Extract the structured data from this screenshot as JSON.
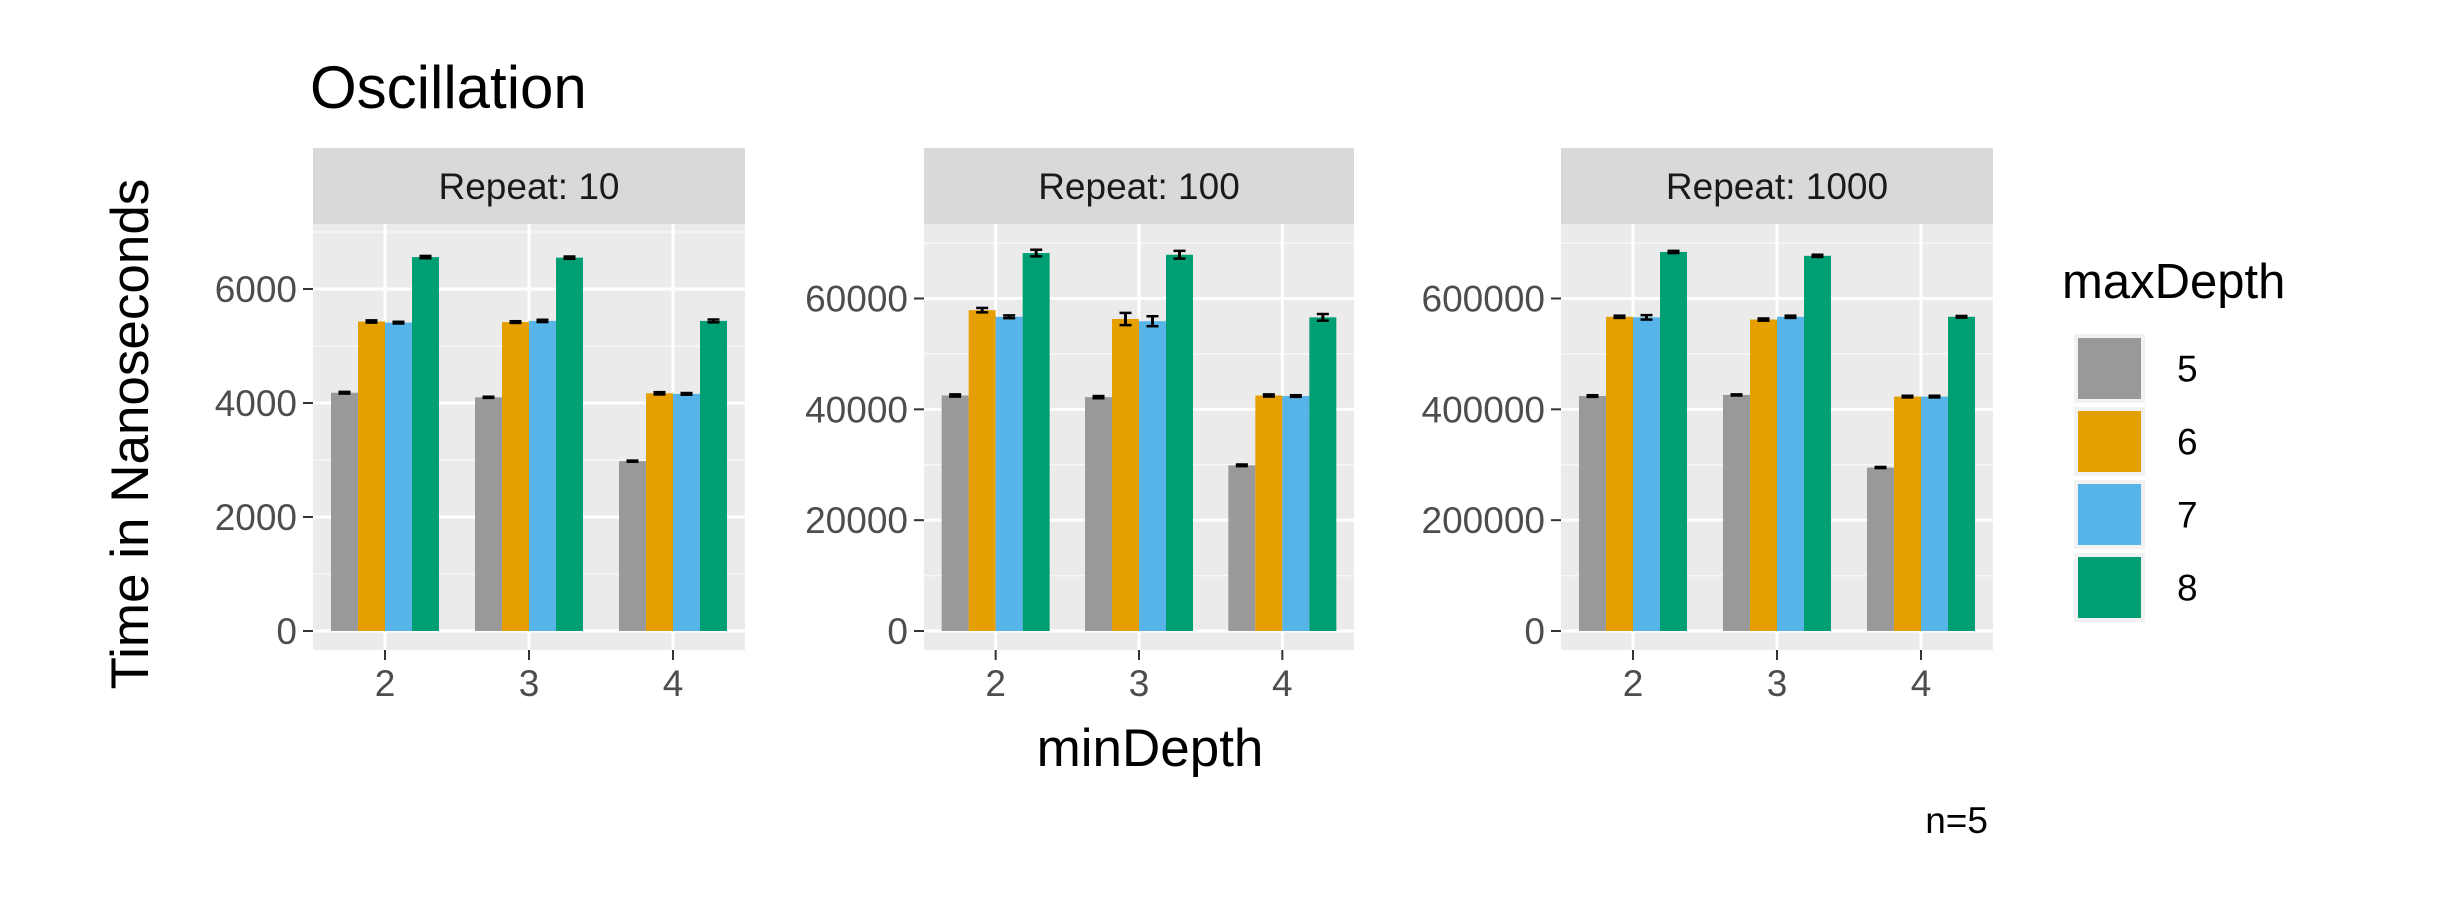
{
  "chart_data": {
    "type": "bar",
    "title": "Oscillation",
    "xlabel": "minDepth",
    "ylabel": "Time in Nanoseconds",
    "caption": "n=5",
    "categories": [
      "2",
      "3",
      "4"
    ],
    "legend": {
      "title": "maxDepth",
      "position": "right",
      "entries": [
        {
          "label": "5",
          "color": "#999999"
        },
        {
          "label": "6",
          "color": "#E69F00"
        },
        {
          "label": "7",
          "color": "#56B4E9"
        },
        {
          "label": "8",
          "color": "#009E73"
        }
      ]
    },
    "grid": true,
    "panels": [
      {
        "strip": "Repeat: 10",
        "ylim": [
          0,
          7000
        ],
        "yticks": [
          0,
          2000,
          4000,
          6000
        ],
        "series": [
          {
            "name": "5",
            "values": [
              4180,
              4100,
              2980
            ]
          },
          {
            "name": "6",
            "values": [
              5430,
              5420,
              4170
            ]
          },
          {
            "name": "7",
            "values": [
              5410,
              5440,
              4160
            ]
          },
          {
            "name": "8",
            "values": [
              6560,
              6550,
              5440
            ]
          }
        ],
        "errors": [
          [
            15,
            10,
            10
          ],
          [
            20,
            15,
            20
          ],
          [
            15,
            20,
            15
          ],
          [
            20,
            20,
            25
          ]
        ]
      },
      {
        "strip": "Repeat: 100",
        "ylim": [
          0,
          72000
        ],
        "yticks": [
          0,
          20000,
          40000,
          60000
        ],
        "series": [
          {
            "name": "5",
            "values": [
              42500,
              42200,
              29900
            ]
          },
          {
            "name": "6",
            "values": [
              57900,
              56300,
              42500
            ]
          },
          {
            "name": "7",
            "values": [
              56700,
              55900,
              42400
            ]
          },
          {
            "name": "8",
            "values": [
              68200,
              67900,
              56600
            ]
          }
        ],
        "errors": [
          [
            200,
            200,
            150
          ],
          [
            400,
            1100,
            200
          ],
          [
            250,
            900,
            150
          ],
          [
            600,
            700,
            600
          ]
        ]
      },
      {
        "strip": "Repeat: 1000",
        "ylim": [
          0,
          720000
        ],
        "yticks": [
          0,
          200000,
          400000,
          600000
        ],
        "series": [
          {
            "name": "5",
            "values": [
              424000,
              426000,
              295000
            ]
          },
          {
            "name": "6",
            "values": [
              567000,
              562000,
              423000
            ]
          },
          {
            "name": "7",
            "values": [
              566000,
              567000,
              423000
            ]
          },
          {
            "name": "8",
            "values": [
              684000,
              677000,
              567000
            ]
          }
        ],
        "errors": [
          [
            1500,
            1000,
            1000
          ],
          [
            2000,
            2000,
            1500
          ],
          [
            4000,
            2000,
            1500
          ],
          [
            2000,
            2000,
            1500
          ]
        ]
      }
    ]
  }
}
